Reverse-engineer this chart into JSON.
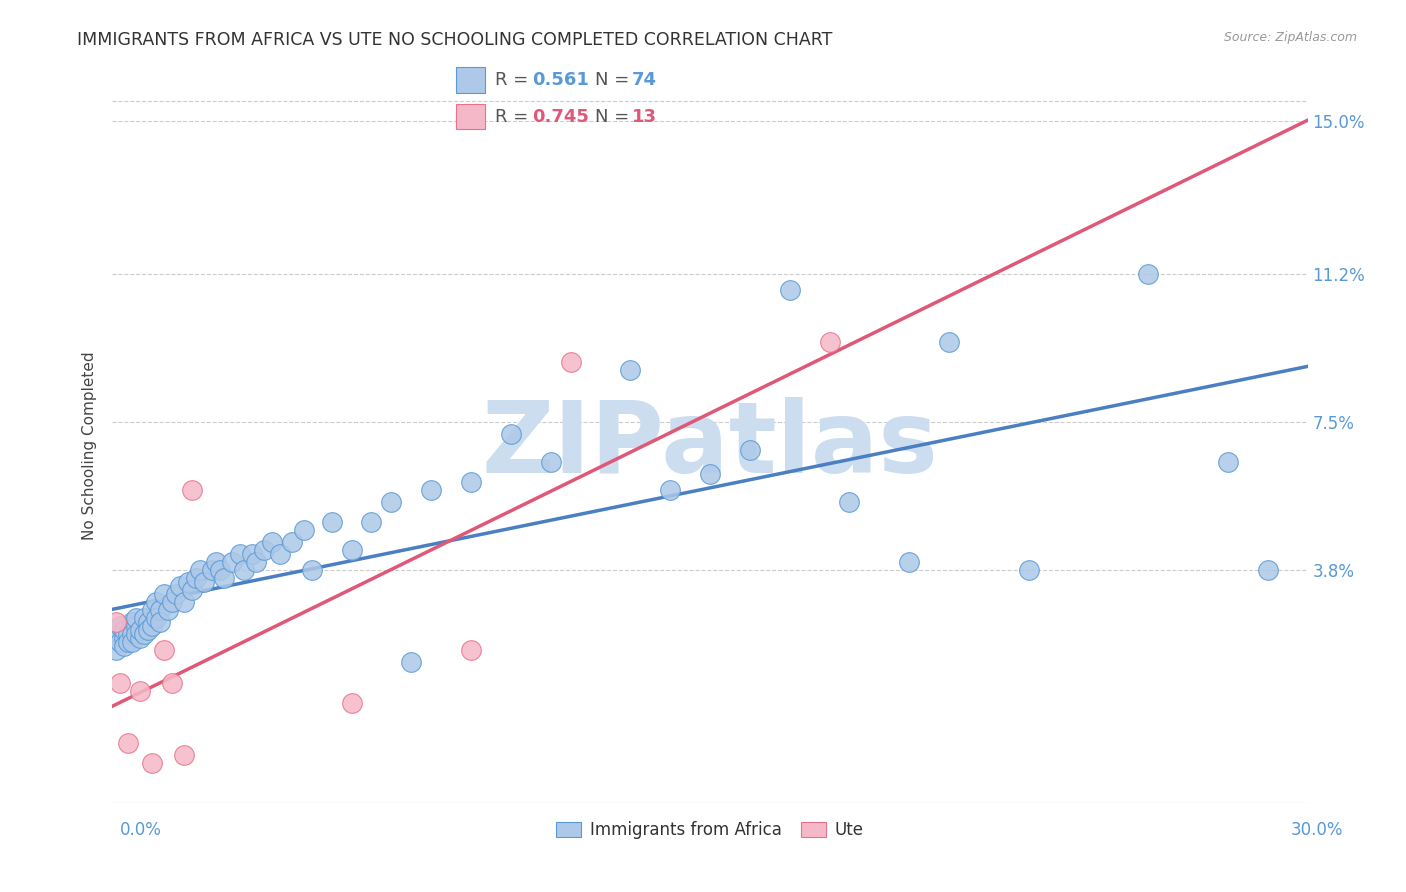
{
  "title": "IMMIGRANTS FROM AFRICA VS UTE NO SCHOOLING COMPLETED CORRELATION CHART",
  "source": "Source: ZipAtlas.com",
  "ylabel": "No Schooling Completed",
  "xlim": [
    0.0,
    0.3
  ],
  "ylim": [
    -0.02,
    0.158
  ],
  "ytick_values": [
    0.038,
    0.075,
    0.112,
    0.15
  ],
  "ytick_labels": [
    "3.8%",
    "7.5%",
    "11.2%",
    "15.0%"
  ],
  "R_blue": 0.561,
  "N_blue": 74,
  "R_pink": 0.745,
  "N_pink": 13,
  "blue_color": "#adc8e8",
  "blue_edge_color": "#5899d6",
  "blue_line_color": "#4a7fc1",
  "pink_color": "#f5b8c8",
  "pink_edge_color": "#e8728a",
  "pink_line_color": "#e05878",
  "watermark_color": "#ccddf0",
  "title_fontsize": 12.5,
  "legend_fontsize": 13,
  "tick_fontsize": 12,
  "blue_x": [
    0.001,
    0.001,
    0.002,
    0.002,
    0.003,
    0.003,
    0.003,
    0.004,
    0.004,
    0.005,
    0.005,
    0.005,
    0.006,
    0.006,
    0.006,
    0.007,
    0.007,
    0.008,
    0.008,
    0.009,
    0.009,
    0.01,
    0.01,
    0.011,
    0.011,
    0.012,
    0.012,
    0.013,
    0.014,
    0.015,
    0.016,
    0.017,
    0.018,
    0.019,
    0.02,
    0.021,
    0.022,
    0.023,
    0.025,
    0.026,
    0.027,
    0.028,
    0.03,
    0.032,
    0.033,
    0.035,
    0.036,
    0.038,
    0.04,
    0.042,
    0.045,
    0.048,
    0.05,
    0.055,
    0.06,
    0.065,
    0.07,
    0.075,
    0.08,
    0.09,
    0.1,
    0.11,
    0.13,
    0.14,
    0.15,
    0.16,
    0.17,
    0.185,
    0.2,
    0.21,
    0.23,
    0.26,
    0.28,
    0.29
  ],
  "blue_y": [
    0.022,
    0.018,
    0.02,
    0.024,
    0.021,
    0.023,
    0.019,
    0.022,
    0.02,
    0.025,
    0.022,
    0.02,
    0.024,
    0.022,
    0.026,
    0.021,
    0.023,
    0.026,
    0.022,
    0.025,
    0.023,
    0.028,
    0.024,
    0.03,
    0.026,
    0.028,
    0.025,
    0.032,
    0.028,
    0.03,
    0.032,
    0.034,
    0.03,
    0.035,
    0.033,
    0.036,
    0.038,
    0.035,
    0.038,
    0.04,
    0.038,
    0.036,
    0.04,
    0.042,
    0.038,
    0.042,
    0.04,
    0.043,
    0.045,
    0.042,
    0.045,
    0.048,
    0.038,
    0.05,
    0.043,
    0.05,
    0.055,
    0.015,
    0.058,
    0.06,
    0.072,
    0.065,
    0.088,
    0.058,
    0.062,
    0.068,
    0.108,
    0.055,
    0.04,
    0.095,
    0.038,
    0.112,
    0.065,
    0.038
  ],
  "pink_x": [
    0.001,
    0.002,
    0.004,
    0.007,
    0.01,
    0.013,
    0.015,
    0.018,
    0.02,
    0.06,
    0.09,
    0.115,
    0.18
  ],
  "pink_y": [
    0.025,
    0.01,
    -0.005,
    0.008,
    -0.01,
    0.018,
    0.01,
    -0.008,
    0.058,
    0.005,
    0.018,
    0.09,
    0.095
  ]
}
